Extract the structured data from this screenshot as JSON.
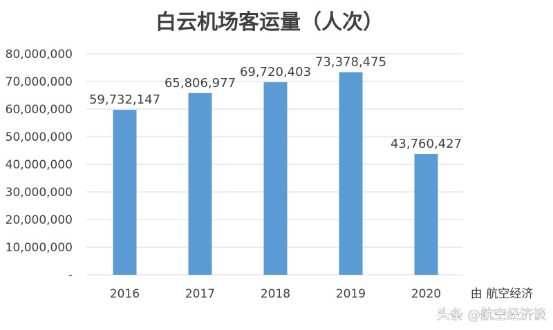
{
  "chart_data": {
    "type": "bar",
    "title": "白云机场客运量（人次）",
    "xlabel": "",
    "ylabel": "",
    "categories": [
      "2016",
      "2017",
      "2018",
      "2019",
      "2020"
    ],
    "values": [
      59732147,
      65806977,
      69720403,
      73378475,
      43760427
    ],
    "value_labels": [
      "59,732,147",
      "65,806,977",
      "69,720,403",
      "73,378,475",
      "43,760,427"
    ],
    "ylim": [
      0,
      80000000
    ],
    "y_ticks": [
      0,
      10000000,
      20000000,
      30000000,
      40000000,
      50000000,
      60000000,
      70000000,
      80000000
    ],
    "y_tick_labels": [
      "-",
      "10,000,000",
      "20,000,000",
      "30,000,000",
      "40,000,000",
      "50,000,000",
      "60,000,000",
      "70,000,000",
      "80,000,000"
    ],
    "grid": true,
    "bar_color": "#5b9bd5",
    "gridline_color": "#d9d9d9",
    "text_color": "#404040",
    "legend": "none"
  },
  "annotations": {
    "source": "由 航空经济",
    "watermark": "头条 @航空经济谈"
  }
}
